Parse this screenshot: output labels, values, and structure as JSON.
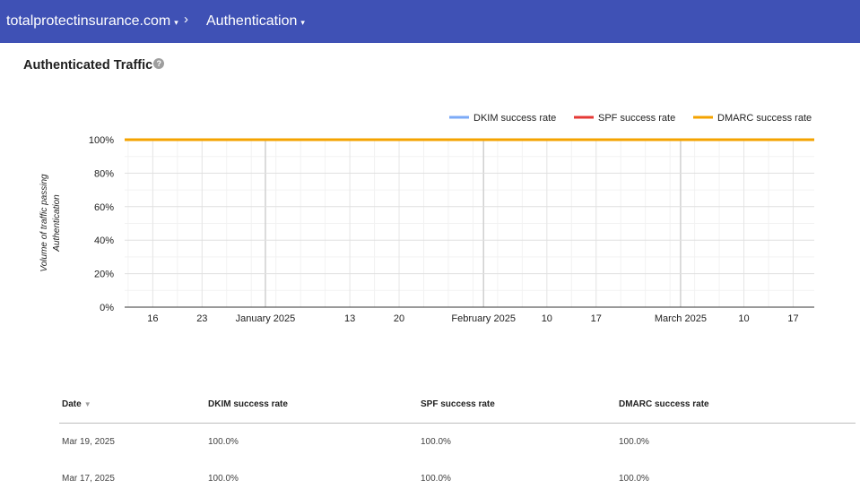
{
  "header": {
    "domain": "totalprotectinsurance.com",
    "separator": "›",
    "section": "Authentication",
    "caret": "▾",
    "bg_color": "#3f51b5"
  },
  "panel": {
    "title": "Authenticated Traffic",
    "help_icon": "?"
  },
  "chart_data": {
    "type": "line",
    "ylabel": "Volume of traffic passing Authentication",
    "ylabel_lines": [
      "Volume of traffic passing",
      "Authentication"
    ],
    "ylim": [
      0,
      100
    ],
    "yticks": [
      "0%",
      "20%",
      "40%",
      "60%",
      "80%",
      "100%"
    ],
    "ytick_values": [
      0,
      20,
      40,
      60,
      80,
      100
    ],
    "xlim": [
      "2024-12-12",
      "2025-03-20"
    ],
    "xticks": [
      {
        "label": "16",
        "date": "2024-12-16",
        "major": false
      },
      {
        "label": "23",
        "date": "2024-12-23",
        "major": false
      },
      {
        "label": "January 2025",
        "date": "2025-01-01",
        "major": true
      },
      {
        "label": "13",
        "date": "2025-01-13",
        "major": false
      },
      {
        "label": "20",
        "date": "2025-01-20",
        "major": false
      },
      {
        "label": "February 2025",
        "date": "2025-02-01",
        "major": true
      },
      {
        "label": "10",
        "date": "2025-02-10",
        "major": false
      },
      {
        "label": "17",
        "date": "2025-02-17",
        "major": false
      },
      {
        "label": "March 2025",
        "date": "2025-03-01",
        "major": true
      },
      {
        "label": "10",
        "date": "2025-03-10",
        "major": false
      },
      {
        "label": "17",
        "date": "2025-03-17",
        "major": false
      }
    ],
    "grid": true,
    "legend_position": "top-right",
    "series": [
      {
        "name": "DKIM success rate",
        "color": "#7baaf7",
        "x": [
          "2024-12-12",
          "2025-03-20"
        ],
        "values": [
          100,
          100
        ]
      },
      {
        "name": "SPF success rate",
        "color": "#e53935",
        "x": [
          "2024-12-12",
          "2025-03-20"
        ],
        "values": [
          100,
          100
        ]
      },
      {
        "name": "DMARC success rate",
        "color": "#f4a300",
        "x": [
          "2024-12-12",
          "2025-03-20"
        ],
        "values": [
          100,
          100
        ]
      }
    ]
  },
  "table": {
    "sort_icon": "▼",
    "columns": [
      "Date",
      "DKIM success rate",
      "SPF success rate",
      "DMARC success rate"
    ],
    "rows": [
      [
        "Mar 19, 2025",
        "100.0%",
        "100.0%",
        "100.0%"
      ],
      [
        "Mar 17, 2025",
        "100.0%",
        "100.0%",
        "100.0%"
      ]
    ]
  }
}
